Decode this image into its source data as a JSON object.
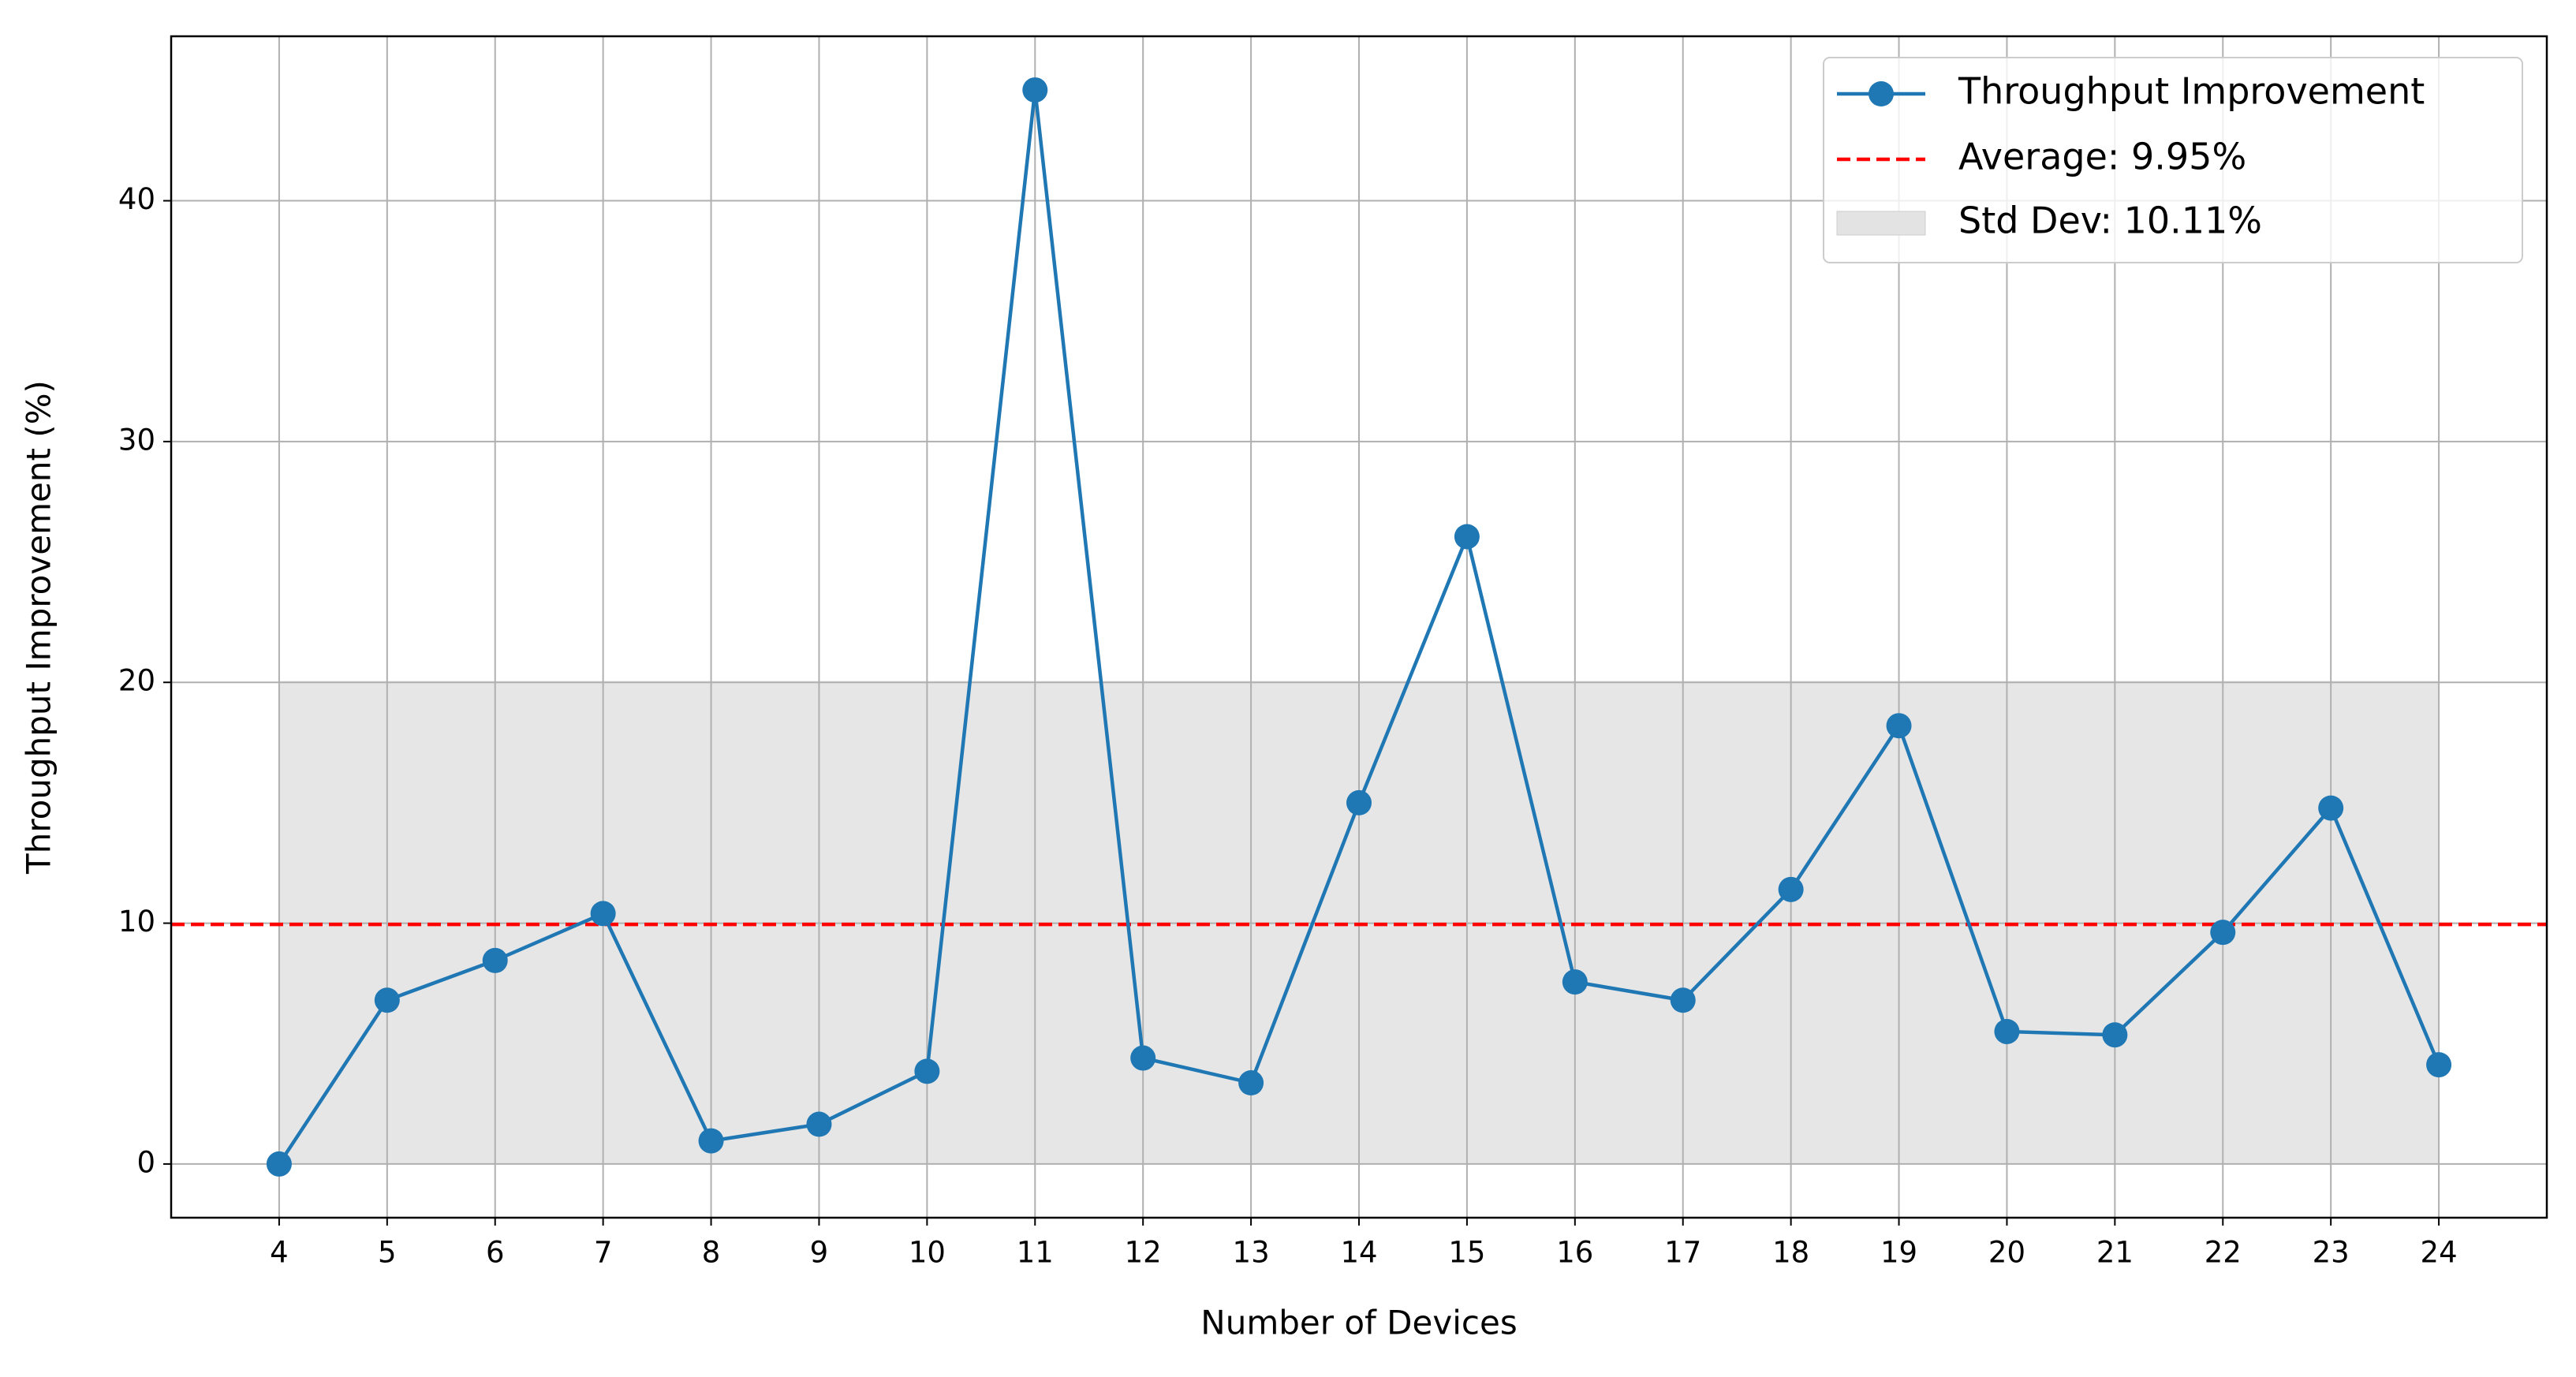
{
  "chart_data": {
    "type": "line",
    "x_label": "Number of Devices",
    "y_label": "Throughput Improvement (%)",
    "x": [
      4,
      5,
      6,
      7,
      8,
      9,
      10,
      11,
      12,
      13,
      14,
      15,
      16,
      17,
      18,
      19,
      20,
      21,
      22,
      23,
      24
    ],
    "series": [
      {
        "name": "Throughput Improvement",
        "color": "#1f77b4",
        "values": [
          0.0,
          6.8,
          8.45,
          10.4,
          0.96,
          1.65,
          3.85,
          44.6,
          4.4,
          3.37,
          15.0,
          26.05,
          7.56,
          6.8,
          11.4,
          18.2,
          5.5,
          5.36,
          9.62,
          14.78,
          4.12
        ]
      }
    ],
    "reference_line": {
      "label": "Average: 9.95%",
      "value": 9.95,
      "color": "#ff0000"
    },
    "band": {
      "label": "Std Dev: 10.11%",
      "lower": 0,
      "upper": 20.06,
      "color": "#e3e3e3"
    },
    "xlim": [
      3,
      25
    ],
    "ylim": [
      -2.23,
      46.83
    ],
    "xticks": [
      4,
      5,
      6,
      7,
      8,
      9,
      10,
      11,
      12,
      13,
      14,
      15,
      16,
      17,
      18,
      19,
      20,
      21,
      22,
      23,
      24
    ],
    "yticks": [
      0,
      10,
      20,
      30,
      40
    ],
    "grid": true,
    "legend": "upper right"
  }
}
